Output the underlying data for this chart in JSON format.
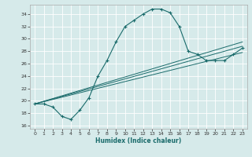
{
  "xlabel": "Humidex (Indice chaleur)",
  "bg_color": "#d6eaea",
  "line_color": "#1a6b6b",
  "xlim": [
    -0.5,
    23.5
  ],
  "ylim": [
    15.5,
    35.5
  ],
  "xticks": [
    0,
    1,
    2,
    3,
    4,
    5,
    6,
    7,
    8,
    9,
    10,
    11,
    12,
    13,
    14,
    15,
    16,
    17,
    18,
    19,
    20,
    21,
    22,
    23
  ],
  "yticks": [
    16,
    18,
    20,
    22,
    24,
    26,
    28,
    30,
    32,
    34
  ],
  "main_series": {
    "x": [
      0,
      1,
      2,
      3,
      4,
      5,
      6,
      7,
      8,
      9,
      10,
      11,
      12,
      13,
      14,
      15,
      16,
      17,
      18,
      19,
      20,
      21,
      22,
      23
    ],
    "y": [
      19.5,
      19.5,
      19.0,
      17.5,
      17.0,
      18.5,
      20.5,
      24.0,
      26.5,
      29.5,
      32.0,
      33.0,
      34.0,
      34.8,
      34.8,
      34.2,
      32.0,
      28.0,
      27.5,
      26.5,
      26.5,
      26.5,
      27.5,
      28.5
    ]
  },
  "straight_lines": [
    {
      "x": [
        0,
        23
      ],
      "y": [
        19.5,
        28.8
      ]
    },
    {
      "x": [
        0,
        23
      ],
      "y": [
        19.5,
        27.8
      ]
    },
    {
      "x": [
        0,
        23
      ],
      "y": [
        19.5,
        29.5
      ]
    }
  ]
}
